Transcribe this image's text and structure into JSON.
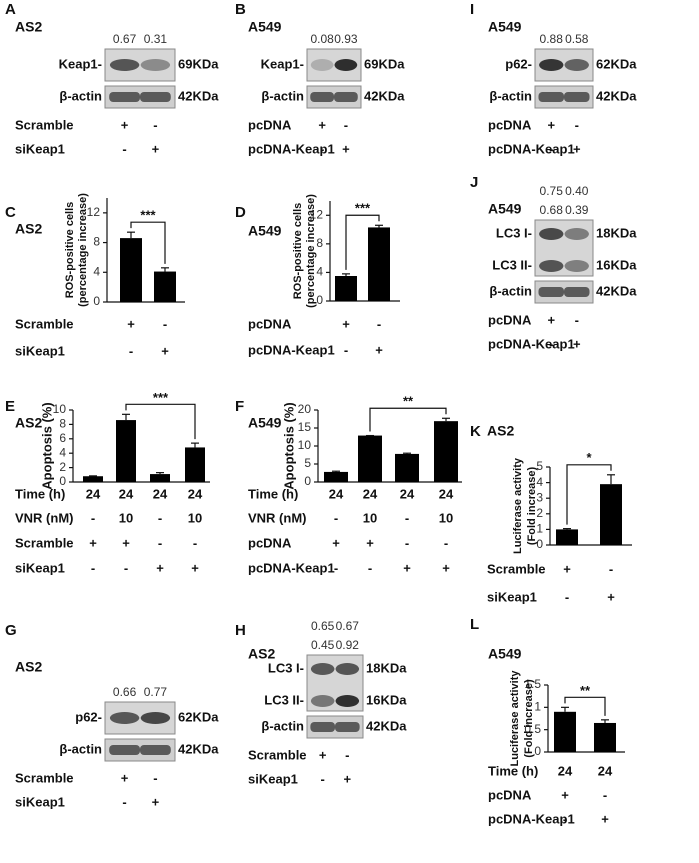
{
  "chart_data": [
    {
      "type": "bar",
      "letter": "C",
      "title": "AS2",
      "ylabel": [
        "ROS-positive cells",
        "(percentage increase)"
      ],
      "ylim": [
        0,
        14
      ],
      "yticks": [
        0,
        4,
        8,
        12
      ],
      "values": [
        8.6,
        4.1
      ],
      "errors": [
        0.8,
        0.5
      ],
      "color": "#000000",
      "significance": {
        "label": "***",
        "between": [
          0,
          1
        ]
      },
      "conditions": [
        {
          "label": "Scramble",
          "marks": [
            "+",
            "-"
          ]
        },
        {
          "label": "siKeap1",
          "marks": [
            "-",
            "+"
          ]
        }
      ]
    },
    {
      "type": "bar",
      "letter": "D",
      "title": "A549",
      "ylabel": [
        "ROS-positive cells",
        "(percentage increase)"
      ],
      "ylim": [
        0,
        14
      ],
      "yticks": [
        0,
        4,
        8,
        12
      ],
      "values": [
        3.5,
        10.3
      ],
      "errors": [
        0.3,
        0.3
      ],
      "color": "#000000",
      "significance": {
        "label": "***",
        "between": [
          0,
          1
        ]
      },
      "conditions": [
        {
          "label": "pcDNA",
          "marks": [
            "+",
            "-"
          ]
        },
        {
          "label": "pcDNA-Keap1",
          "marks": [
            "-",
            "+"
          ]
        }
      ]
    },
    {
      "type": "bar",
      "letter": "E",
      "title": "AS2",
      "ylabel": [
        "Apoptosis (%)"
      ],
      "ylim": [
        0,
        10
      ],
      "yticks": [
        0,
        2,
        4,
        6,
        8,
        10
      ],
      "values": [
        0.8,
        8.6,
        1.1,
        4.8
      ],
      "errors": [
        0.05,
        0.8,
        0.2,
        0.6
      ],
      "color": "#000000",
      "significance": {
        "label": "***",
        "between": [
          1,
          3
        ]
      },
      "conditions": [
        {
          "label": "Time (h)",
          "marks": [
            24,
            24,
            24,
            24
          ]
        },
        {
          "label": "VNR (nM)",
          "marks": [
            "-",
            10,
            "-",
            10
          ]
        },
        {
          "label": "Scramble",
          "marks": [
            "+",
            "+",
            "-",
            "-"
          ]
        },
        {
          "label": "siKeap1",
          "marks": [
            "-",
            "-",
            "+",
            "+"
          ]
        }
      ]
    },
    {
      "type": "bar",
      "letter": "F",
      "title": "A549",
      "ylabel": [
        "Apoptosis (%)"
      ],
      "ylim": [
        0,
        20
      ],
      "yticks": [
        0,
        5,
        10,
        15,
        20
      ],
      "values": [
        2.8,
        12.9,
        7.8,
        16.9
      ],
      "errors": [
        0.2,
        0,
        0.2,
        0.8
      ],
      "color": "#000000",
      "significance": {
        "label": "**",
        "between": [
          1,
          3
        ]
      },
      "conditions": [
        {
          "label": "Time (h)",
          "marks": [
            24,
            24,
            24,
            24
          ]
        },
        {
          "label": "VNR (nM)",
          "marks": [
            "-",
            10,
            "-",
            10
          ]
        },
        {
          "label": "pcDNA",
          "marks": [
            "+",
            "+",
            "-",
            "-"
          ]
        },
        {
          "label": "pcDNA-Keap1",
          "marks": [
            "-",
            "-",
            "+",
            "+"
          ]
        }
      ]
    },
    {
      "type": "bar",
      "letter": "K",
      "title": "AS2",
      "ylabel": [
        "Luciferase activity",
        "(Fold increase)"
      ],
      "ylim": [
        0,
        5
      ],
      "yticks": [
        0,
        1,
        2,
        3,
        4,
        5
      ],
      "values": [
        1.0,
        3.9
      ],
      "errors": [
        0.05,
        0.6
      ],
      "color": "#000000",
      "significance": {
        "label": "*",
        "between": [
          0,
          1
        ]
      },
      "conditions": [
        {
          "label": "Scramble",
          "marks": [
            "+",
            "-"
          ]
        },
        {
          "label": "siKeap1",
          "marks": [
            "-",
            "+"
          ]
        }
      ]
    },
    {
      "type": "bar",
      "letter": "L",
      "title": "A549",
      "ylabel": [
        "Luciferase activity",
        "(Fold increase)"
      ],
      "ylim": [
        0,
        1.5
      ],
      "yticks": [
        0,
        0.5,
        1,
        1.5
      ],
      "values": [
        0.9,
        0.65
      ],
      "errors": [
        0.1,
        0.07
      ],
      "color": "#000000",
      "significance": {
        "label": "**",
        "between": [
          0,
          1
        ]
      },
      "conditions": [
        {
          "label": "Time (h)",
          "marks": [
            24,
            24
          ]
        },
        {
          "label": "pcDNA",
          "marks": [
            "+",
            "-"
          ]
        },
        {
          "label": "pcDNA-Keap1",
          "marks": [
            "-",
            "+"
          ]
        }
      ]
    }
  ],
  "blots": [
    {
      "letter": "A",
      "cell": "AS2",
      "band_values": [
        [
          0.67,
          0.31
        ]
      ],
      "bands": [
        {
          "label": "Keap1-",
          "kda": "69KDa"
        },
        {
          "label": "β-actin",
          "kda": "42KDa"
        }
      ],
      "conditions": [
        {
          "label": "Scramble",
          "marks": [
            "+",
            "-"
          ]
        },
        {
          "label": "siKeap1",
          "marks": [
            "-",
            "+"
          ]
        }
      ]
    },
    {
      "letter": "B",
      "cell": "A549",
      "band_values": [
        [
          0.08,
          0.93
        ]
      ],
      "bands": [
        {
          "label": "Keap1-",
          "kda": "69KDa"
        },
        {
          "label": "β-actin",
          "kda": "42KDa"
        }
      ],
      "conditions": [
        {
          "label": "pcDNA",
          "marks": [
            "+",
            "-"
          ]
        },
        {
          "label": "pcDNA-Keap1",
          "marks": [
            "-",
            "+"
          ]
        }
      ]
    },
    {
      "letter": "I",
      "cell": "A549",
      "band_values": [
        [
          0.88,
          0.58
        ]
      ],
      "bands": [
        {
          "label": "p62-",
          "kda": "62KDa"
        },
        {
          "label": "β-actin",
          "kda": "42KDa"
        }
      ],
      "conditions": [
        {
          "label": "pcDNA",
          "marks": [
            "+",
            "-"
          ]
        },
        {
          "label": "pcDNA-Keap1",
          "marks": [
            "-",
            "+"
          ]
        }
      ]
    },
    {
      "letter": "J",
      "cell": "A549",
      "band_values": [
        [
          0.75,
          {
            "value": 0.4,
            "label": "0.40"
          }
        ],
        [
          0.68,
          0.39
        ]
      ],
      "bands": [
        {
          "label": "LC3 I-",
          "kda": "18KDa"
        },
        {
          "label": "LC3 II-",
          "kda": "16KDa"
        },
        {
          "label": "β-actin",
          "kda": "42KDa"
        }
      ],
      "conditions": [
        {
          "label": "pcDNA",
          "marks": [
            "+",
            "-"
          ]
        },
        {
          "label": "pcDNA-Keap1",
          "marks": [
            "-",
            "+"
          ]
        }
      ]
    },
    {
      "letter": "G",
      "cell": "AS2",
      "band_values": [
        [
          0.66,
          0.77
        ]
      ],
      "bands": [
        {
          "label": "p62-",
          "kda": "62KDa"
        },
        {
          "label": "β-actin",
          "kda": "42KDa"
        }
      ],
      "conditions": [
        {
          "label": "Scramble",
          "marks": [
            "+",
            "-"
          ]
        },
        {
          "label": "siKeap1",
          "marks": [
            "-",
            "+"
          ]
        }
      ]
    },
    {
      "letter": "H",
      "cell": "AS2",
      "band_values": [
        [
          0.65,
          0.67
        ],
        [
          0.45,
          0.92
        ]
      ],
      "bands": [
        {
          "label": "LC3 I-",
          "kda": "18KDa"
        },
        {
          "label": "LC3 II-",
          "kda": "16KDa"
        },
        {
          "label": "β-actin",
          "kda": "42KDa"
        }
      ],
      "conditions": [
        {
          "label": "Scramble",
          "marks": [
            "+",
            "-"
          ]
        },
        {
          "label": "siKeap1",
          "marks": [
            "-",
            "+"
          ]
        }
      ]
    }
  ]
}
